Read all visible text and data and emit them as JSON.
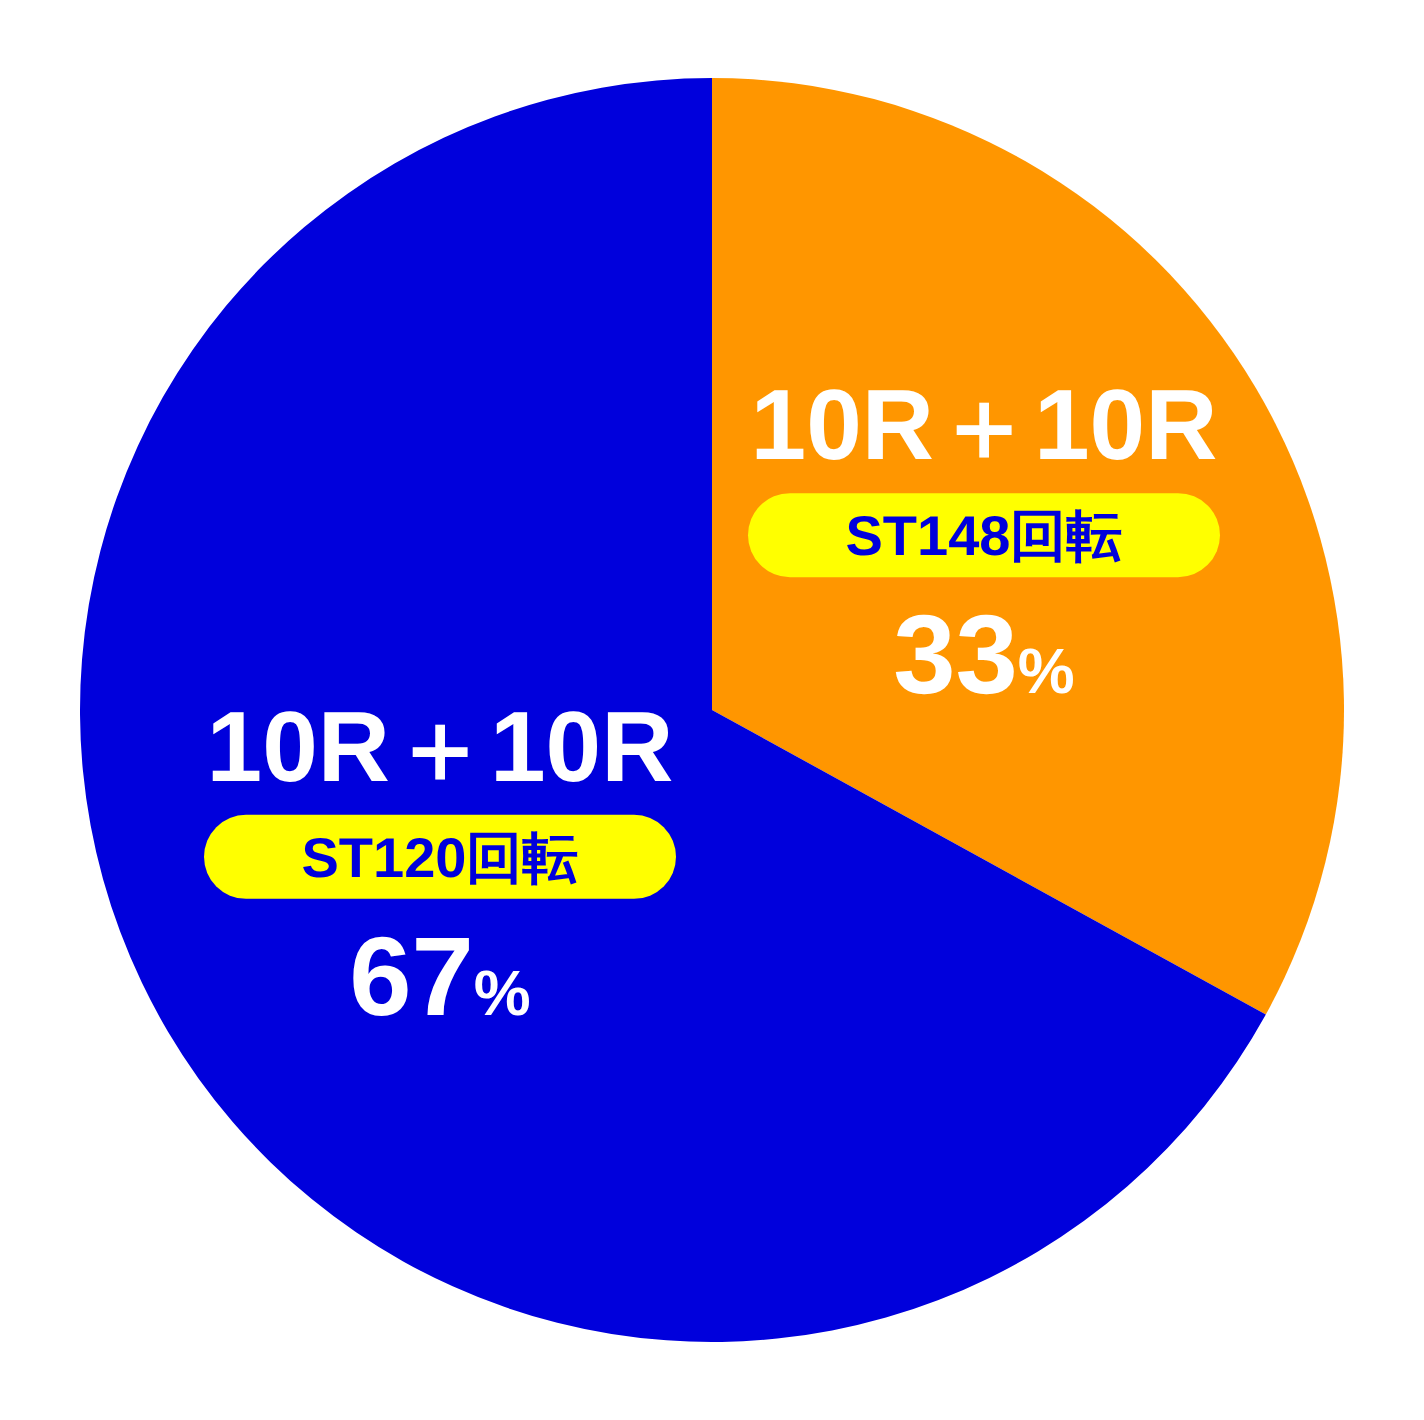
{
  "chart_data": {
    "type": "pie",
    "categories": [
      "10R＋10R",
      "10R＋10R"
    ],
    "values": [
      33,
      67
    ],
    "colors": [
      "#ff9600",
      "#0000dc"
    ],
    "annotations": [
      "ST148回転",
      "ST120回転"
    ],
    "value_labels": [
      "33%",
      "67%"
    ],
    "legend": false
  }
}
